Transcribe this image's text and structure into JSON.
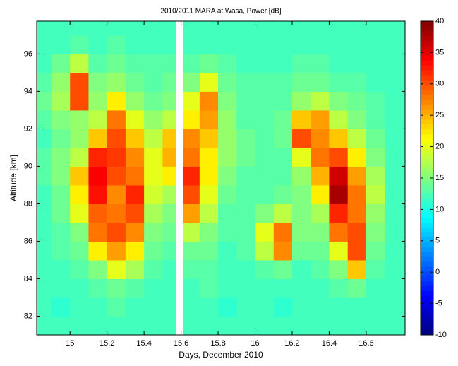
{
  "chart_data": {
    "type": "heatmap",
    "title": "2010/2011 MARA at Wasa, Power [dB]",
    "xlabel": "Days, December 2010",
    "ylabel": "Altitude [km]",
    "colormap": "jet",
    "x": [
      14.82,
      14.9,
      15.0,
      15.1,
      15.2,
      15.3,
      15.4,
      15.5,
      15.57,
      15.61,
      15.7,
      15.8,
      15.9,
      16.0,
      16.1,
      16.2,
      16.3,
      16.4,
      16.5,
      16.6,
      16.7,
      16.81
    ],
    "y": [
      81,
      82,
      83,
      84,
      85,
      86,
      87,
      88,
      89,
      90,
      91,
      92,
      93,
      94,
      95,
      96,
      97,
      97.75
    ],
    "z": [
      [
        12,
        12,
        12,
        12,
        12,
        12,
        12,
        12,
        null,
        12,
        12,
        12,
        12,
        12,
        12,
        12,
        12,
        12,
        12,
        12,
        12
      ],
      [
        12,
        11,
        12,
        12,
        13,
        12,
        12,
        12,
        null,
        12,
        12,
        11,
        12,
        12,
        11,
        12,
        12,
        12,
        12,
        12,
        12
      ],
      [
        12,
        12,
        12,
        13,
        14,
        13,
        12,
        12,
        null,
        12,
        13,
        12,
        12,
        12,
        12,
        12,
        12,
        13,
        14,
        12,
        12
      ],
      [
        12,
        12,
        13,
        15,
        20,
        17,
        13,
        12,
        null,
        13,
        13,
        12,
        12,
        13,
        14,
        12,
        13,
        15,
        24,
        13,
        12
      ],
      [
        12,
        13,
        14,
        22,
        26,
        22,
        14,
        13,
        null,
        14,
        14,
        12,
        13,
        18,
        27,
        14,
        14,
        20,
        30,
        14,
        12
      ],
      [
        12,
        13,
        15,
        28,
        30,
        27,
        15,
        14,
        null,
        18,
        15,
        13,
        13,
        20,
        28,
        15,
        15,
        28,
        30,
        15,
        12
      ],
      [
        12,
        14,
        20,
        29,
        28,
        30,
        17,
        15,
        null,
        26,
        18,
        13,
        13,
        15,
        18,
        15,
        17,
        32,
        28,
        16,
        12
      ],
      [
        12,
        14,
        22,
        33,
        27,
        32,
        19,
        17,
        null,
        30,
        20,
        14,
        13,
        13,
        14,
        15,
        22,
        38,
        28,
        18,
        12
      ],
      [
        13,
        15,
        24,
        34,
        30,
        28,
        20,
        22,
        null,
        32,
        22,
        15,
        13,
        13,
        13,
        16,
        25,
        36,
        26,
        17,
        12
      ],
      [
        13,
        15,
        18,
        32,
        31,
        27,
        20,
        25,
        null,
        28,
        22,
        16,
        14,
        13,
        13,
        20,
        28,
        30,
        22,
        15,
        12
      ],
      [
        12,
        14,
        16,
        24,
        30,
        24,
        18,
        24,
        null,
        27,
        24,
        16,
        14,
        13,
        14,
        30,
        27,
        24,
        18,
        14,
        12
      ],
      [
        13,
        15,
        16,
        18,
        28,
        20,
        16,
        18,
        null,
        22,
        26,
        16,
        13,
        13,
        14,
        24,
        26,
        18,
        15,
        13,
        12
      ],
      [
        14,
        17,
        30,
        16,
        22,
        16,
        14,
        15,
        null,
        20,
        27,
        15,
        13,
        13,
        13,
        16,
        18,
        15,
        14,
        13,
        12
      ],
      [
        13,
        16,
        30,
        15,
        16,
        14,
        13,
        14,
        null,
        15,
        20,
        14,
        13,
        13,
        13,
        14,
        14,
        13,
        13,
        12,
        12
      ],
      [
        12,
        14,
        18,
        13,
        14,
        13,
        13,
        13,
        null,
        13,
        14,
        13,
        12,
        12,
        12,
        13,
        13,
        12,
        12,
        12,
        12
      ],
      [
        12,
        12,
        13,
        12,
        13,
        12,
        12,
        12,
        null,
        12,
        12,
        12,
        12,
        12,
        12,
        12,
        12,
        12,
        12,
        12,
        12
      ],
      [
        12,
        12,
        12,
        12,
        12,
        12,
        12,
        12,
        null,
        12,
        12,
        12,
        12,
        12,
        12,
        12,
        12,
        12,
        12,
        12,
        12
      ]
    ],
    "xlim": [
      14.82,
      16.81
    ],
    "ylim": [
      81,
      97.75
    ],
    "xticks": [
      15,
      15.2,
      15.4,
      15.6,
      15.8,
      16,
      16.2,
      16.4,
      16.6
    ],
    "yticks": [
      82,
      84,
      86,
      88,
      90,
      92,
      94,
      96
    ],
    "clim": [
      -10,
      40
    ],
    "cticks": [
      -10,
      -5,
      0,
      5,
      10,
      15,
      20,
      25,
      30,
      35,
      40
    ]
  }
}
